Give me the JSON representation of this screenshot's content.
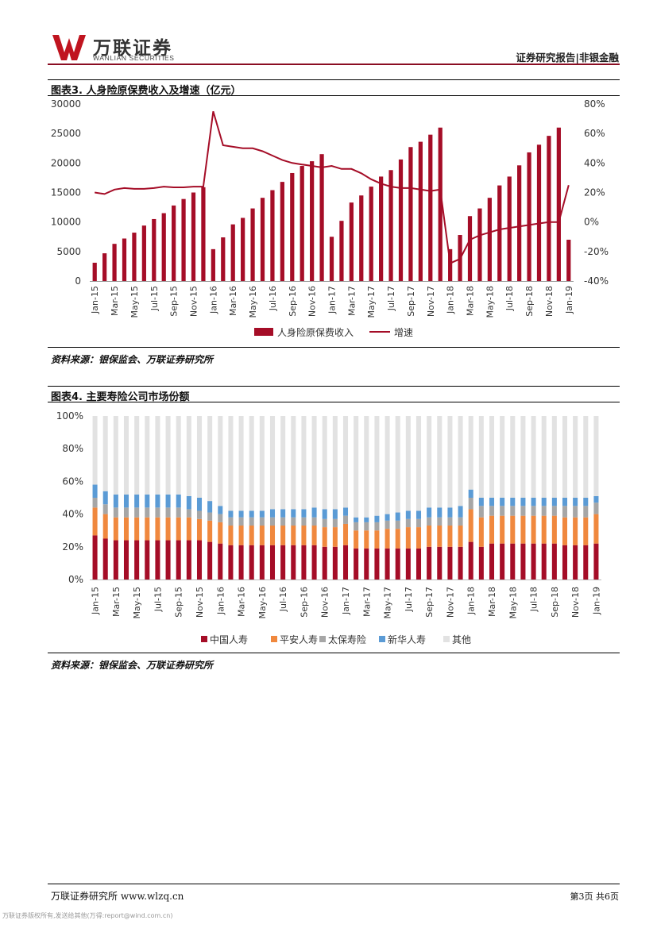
{
  "header": {
    "logo_cn": "万联证券",
    "logo_en": "WANLIAN SECURITIES",
    "report_type": "证券研究报告|非银金融"
  },
  "figure3": {
    "title": "图表3. 人身险原保费收入及增速（亿元）",
    "source": "资料来源：银保监会、万联证券研究所"
  },
  "figure4": {
    "title": "图表4. 主要寿险公司市场份额",
    "source": "资料来源：银保监会、万联证券研究所"
  },
  "footer": {
    "left": "万联证券研究所 www.wlzq.cn",
    "right": "第3页 共6页",
    "watermark": "万联证券版权所有,发送给其他(万得:report@wind.com.cn)"
  },
  "colors": {
    "bar": "#a50d27",
    "line": "#a50d27",
    "s1": "#a50d27",
    "s2": "#f0883e",
    "s3": "#a6a6a6",
    "s4": "#5b9bd5",
    "s5": "#e2e2e2"
  },
  "chart_data": [
    {
      "type": "bar+line",
      "categories": [
        "Jan-15",
        "Feb-15",
        "Mar-15",
        "Apr-15",
        "May-15",
        "Jun-15",
        "Jul-15",
        "Aug-15",
        "Sep-15",
        "Oct-15",
        "Nov-15",
        "Dec-15",
        "Jan-16",
        "Feb-16",
        "Mar-16",
        "Apr-16",
        "May-16",
        "Jun-16",
        "Jul-16",
        "Aug-16",
        "Sep-16",
        "Oct-16",
        "Nov-16",
        "Dec-16",
        "Jan-17",
        "Feb-17",
        "Mar-17",
        "Apr-17",
        "May-17",
        "Jun-17",
        "Jul-17",
        "Aug-17",
        "Sep-17",
        "Oct-17",
        "Nov-17",
        "Dec-17",
        "Jan-18",
        "Feb-18",
        "Mar-18",
        "Apr-18",
        "May-18",
        "Jun-18",
        "Jul-18",
        "Aug-18",
        "Sep-18",
        "Oct-18",
        "Nov-18",
        "Dec-18",
        "Jan-19"
      ],
      "tick_labels": [
        "Jan-15",
        "Mar-15",
        "May-15",
        "Jul-15",
        "Sep-15",
        "Nov-15",
        "Jan-16",
        "Mar-16",
        "May-16",
        "Jul-16",
        "Sep-16",
        "Nov-16",
        "Jan-17",
        "Mar-17",
        "May-17",
        "Jul-17",
        "Sep-17",
        "Nov-17",
        "Jan-18",
        "Mar-18",
        "May-18",
        "Jul-18",
        "Sep-18",
        "Nov-18",
        "Jan-19"
      ],
      "series": [
        {
          "name": "人身险原保费收入",
          "kind": "bar",
          "axis": "left",
          "values": [
            3100,
            4700,
            6300,
            7200,
            8200,
            9400,
            10500,
            11500,
            12800,
            13900,
            15000,
            15900,
            5400,
            7400,
            9600,
            10700,
            12300,
            14100,
            15400,
            16800,
            18300,
            19500,
            20300,
            21500,
            7500,
            10200,
            13300,
            14500,
            16000,
            17700,
            18800,
            20600,
            22700,
            23600,
            24800,
            26000,
            5400,
            7800,
            11000,
            12300,
            14100,
            16200,
            17700,
            19600,
            21800,
            23100,
            24600,
            26000,
            7000
          ]
        },
        {
          "name": "增速",
          "kind": "line",
          "axis": "right",
          "values": [
            20,
            19,
            22,
            23,
            22.5,
            22.5,
            23,
            24,
            23.5,
            23.5,
            24,
            24,
            75,
            52,
            51,
            50,
            50,
            48,
            45,
            42,
            40,
            39,
            38,
            37,
            38,
            36,
            36,
            33,
            29,
            26,
            24,
            23,
            23,
            22,
            21,
            22,
            -28,
            -25,
            -12,
            -9,
            -7,
            -5,
            -4,
            -3,
            -2,
            -1,
            0,
            0,
            25
          ]
        }
      ],
      "y_left": {
        "min": 0,
        "max": 30000,
        "ticks": [
          "0",
          "5000",
          "10000",
          "15000",
          "20000",
          "25000",
          "30000"
        ]
      },
      "y_right": {
        "min": -40,
        "max": 80,
        "ticks": [
          "-40%",
          "-20%",
          "0%",
          "20%",
          "40%",
          "60%",
          "80%"
        ]
      },
      "legend": [
        "人身险原保费收入",
        "增速"
      ]
    },
    {
      "type": "stacked_bar",
      "categories": [
        "Jan-15",
        "Feb-15",
        "Mar-15",
        "Apr-15",
        "May-15",
        "Jun-15",
        "Jul-15",
        "Aug-15",
        "Sep-15",
        "Oct-15",
        "Nov-15",
        "Dec-15",
        "Jan-16",
        "Feb-16",
        "Mar-16",
        "Apr-16",
        "May-16",
        "Jun-16",
        "Jul-16",
        "Aug-16",
        "Sep-16",
        "Oct-16",
        "Nov-16",
        "Dec-16",
        "Jan-17",
        "Feb-17",
        "Mar-17",
        "Apr-17",
        "May-17",
        "Jun-17",
        "Jul-17",
        "Aug-17",
        "Sep-17",
        "Oct-17",
        "Nov-17",
        "Dec-17",
        "Jan-18",
        "Feb-18",
        "Mar-18",
        "Apr-18",
        "May-18",
        "Jun-18",
        "Jul-18",
        "Aug-18",
        "Sep-18",
        "Oct-18",
        "Nov-18",
        "Dec-18",
        "Jan-19"
      ],
      "tick_labels": [
        "Jan-15",
        "Mar-15",
        "May-15",
        "Jul-15",
        "Sep-15",
        "Nov-15",
        "Jan-16",
        "Mar-16",
        "May-16",
        "Jul-16",
        "Sep-16",
        "Nov-16",
        "Jan-17",
        "Mar-17",
        "May-17",
        "Jul-17",
        "Sep-17",
        "Nov-17",
        "Jan-18",
        "Mar-18",
        "May-18",
        "Jul-18",
        "Sep-18",
        "Nov-18",
        "Jan-19"
      ],
      "y": {
        "min": 0,
        "max": 100,
        "ticks": [
          "0%",
          "20%",
          "40%",
          "60%",
          "80%",
          "100%"
        ]
      },
      "series": [
        {
          "name": "中国人寿",
          "values": [
            27,
            25,
            24,
            24,
            24,
            24,
            24,
            24,
            24,
            24,
            24,
            23,
            22,
            21,
            21,
            21,
            21,
            21,
            21,
            21,
            21,
            21,
            20,
            20,
            21,
            19,
            19,
            19,
            19,
            19,
            19,
            19,
            20,
            20,
            20,
            20,
            23,
            20,
            22,
            22,
            22,
            22,
            22,
            22,
            22,
            21,
            21,
            21,
            22
          ]
        },
        {
          "name": "平安人寿",
          "values": [
            17,
            15,
            14,
            14,
            14,
            14,
            14,
            14,
            14,
            14,
            13,
            13,
            13,
            12,
            12,
            12,
            12,
            12,
            12,
            12,
            12,
            12,
            12,
            12,
            13,
            11,
            11,
            11,
            12,
            12,
            13,
            13,
            13,
            13,
            13,
            13,
            20,
            18,
            17,
            17,
            17,
            17,
            17,
            17,
            17,
            17,
            17,
            17,
            18
          ]
        },
        {
          "name": "太保寿险",
          "values": [
            6,
            6,
            6,
            6,
            6,
            6,
            6,
            6,
            6,
            5,
            5,
            5,
            5,
            5,
            5,
            5,
            5,
            5,
            5,
            5,
            5,
            5,
            5,
            5,
            5,
            5,
            5,
            5,
            5,
            5,
            5,
            5,
            5,
            5,
            5,
            5,
            7,
            7,
            6,
            6,
            6,
            6,
            6,
            6,
            6,
            7,
            7,
            7,
            7
          ]
        },
        {
          "name": "新华人寿",
          "values": [
            8,
            8,
            8,
            8,
            8,
            8,
            8,
            8,
            8,
            8,
            8,
            7,
            5,
            4,
            4,
            4,
            4,
            5,
            5,
            5,
            5,
            6,
            6,
            6,
            5,
            3,
            3,
            4,
            4,
            5,
            5,
            5,
            6,
            6,
            6,
            7,
            5,
            5,
            5,
            5,
            5,
            5,
            5,
            5,
            5,
            5,
            5,
            5,
            4
          ]
        },
        {
          "name": "其他",
          "values": [
            42,
            46,
            48,
            48,
            48,
            48,
            48,
            48,
            48,
            49,
            50,
            52,
            55,
            58,
            58,
            58,
            58,
            57,
            57,
            57,
            57,
            56,
            57,
            57,
            56,
            62,
            62,
            61,
            60,
            59,
            58,
            58,
            56,
            56,
            56,
            55,
            45,
            50,
            50,
            50,
            50,
            50,
            50,
            50,
            50,
            50,
            50,
            50,
            49
          ]
        }
      ],
      "legend": [
        "中国人寿",
        "平安人寿",
        "太保寿险",
        "新华人寿",
        "其他"
      ]
    }
  ]
}
